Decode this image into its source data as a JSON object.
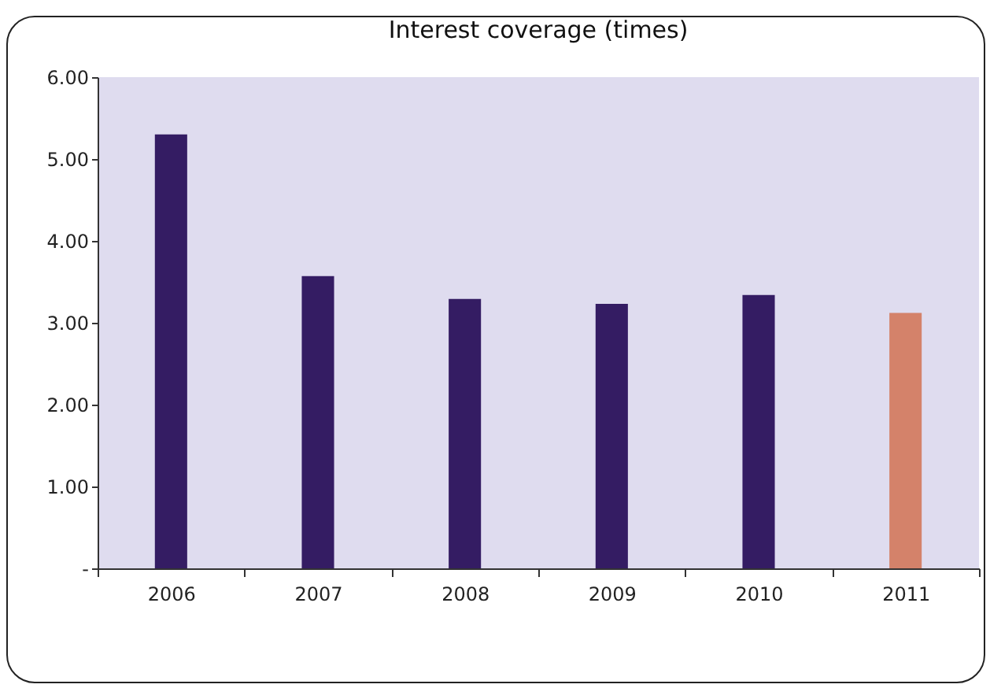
{
  "chart_data": {
    "type": "bar",
    "title": "Interest coverage (times)",
    "categories": [
      "2006",
      "2007",
      "2008",
      "2009",
      "2010",
      "2011"
    ],
    "values": [
      5.3,
      3.57,
      3.29,
      3.23,
      3.34,
      3.12
    ],
    "colors": [
      "#341c63",
      "#341c63",
      "#341c63",
      "#341c63",
      "#341c63",
      "#d4826a"
    ],
    "ylim": [
      0,
      6
    ],
    "yticks": [
      {
        "value": 0,
        "label": "-"
      },
      {
        "value": 1,
        "label": "1.00"
      },
      {
        "value": 2,
        "label": "2.00"
      },
      {
        "value": 3,
        "label": "3.00"
      },
      {
        "value": 4,
        "label": "4.00"
      },
      {
        "value": 5,
        "label": "5.00"
      },
      {
        "value": 6,
        "label": "6.00"
      }
    ],
    "grid": false
  }
}
